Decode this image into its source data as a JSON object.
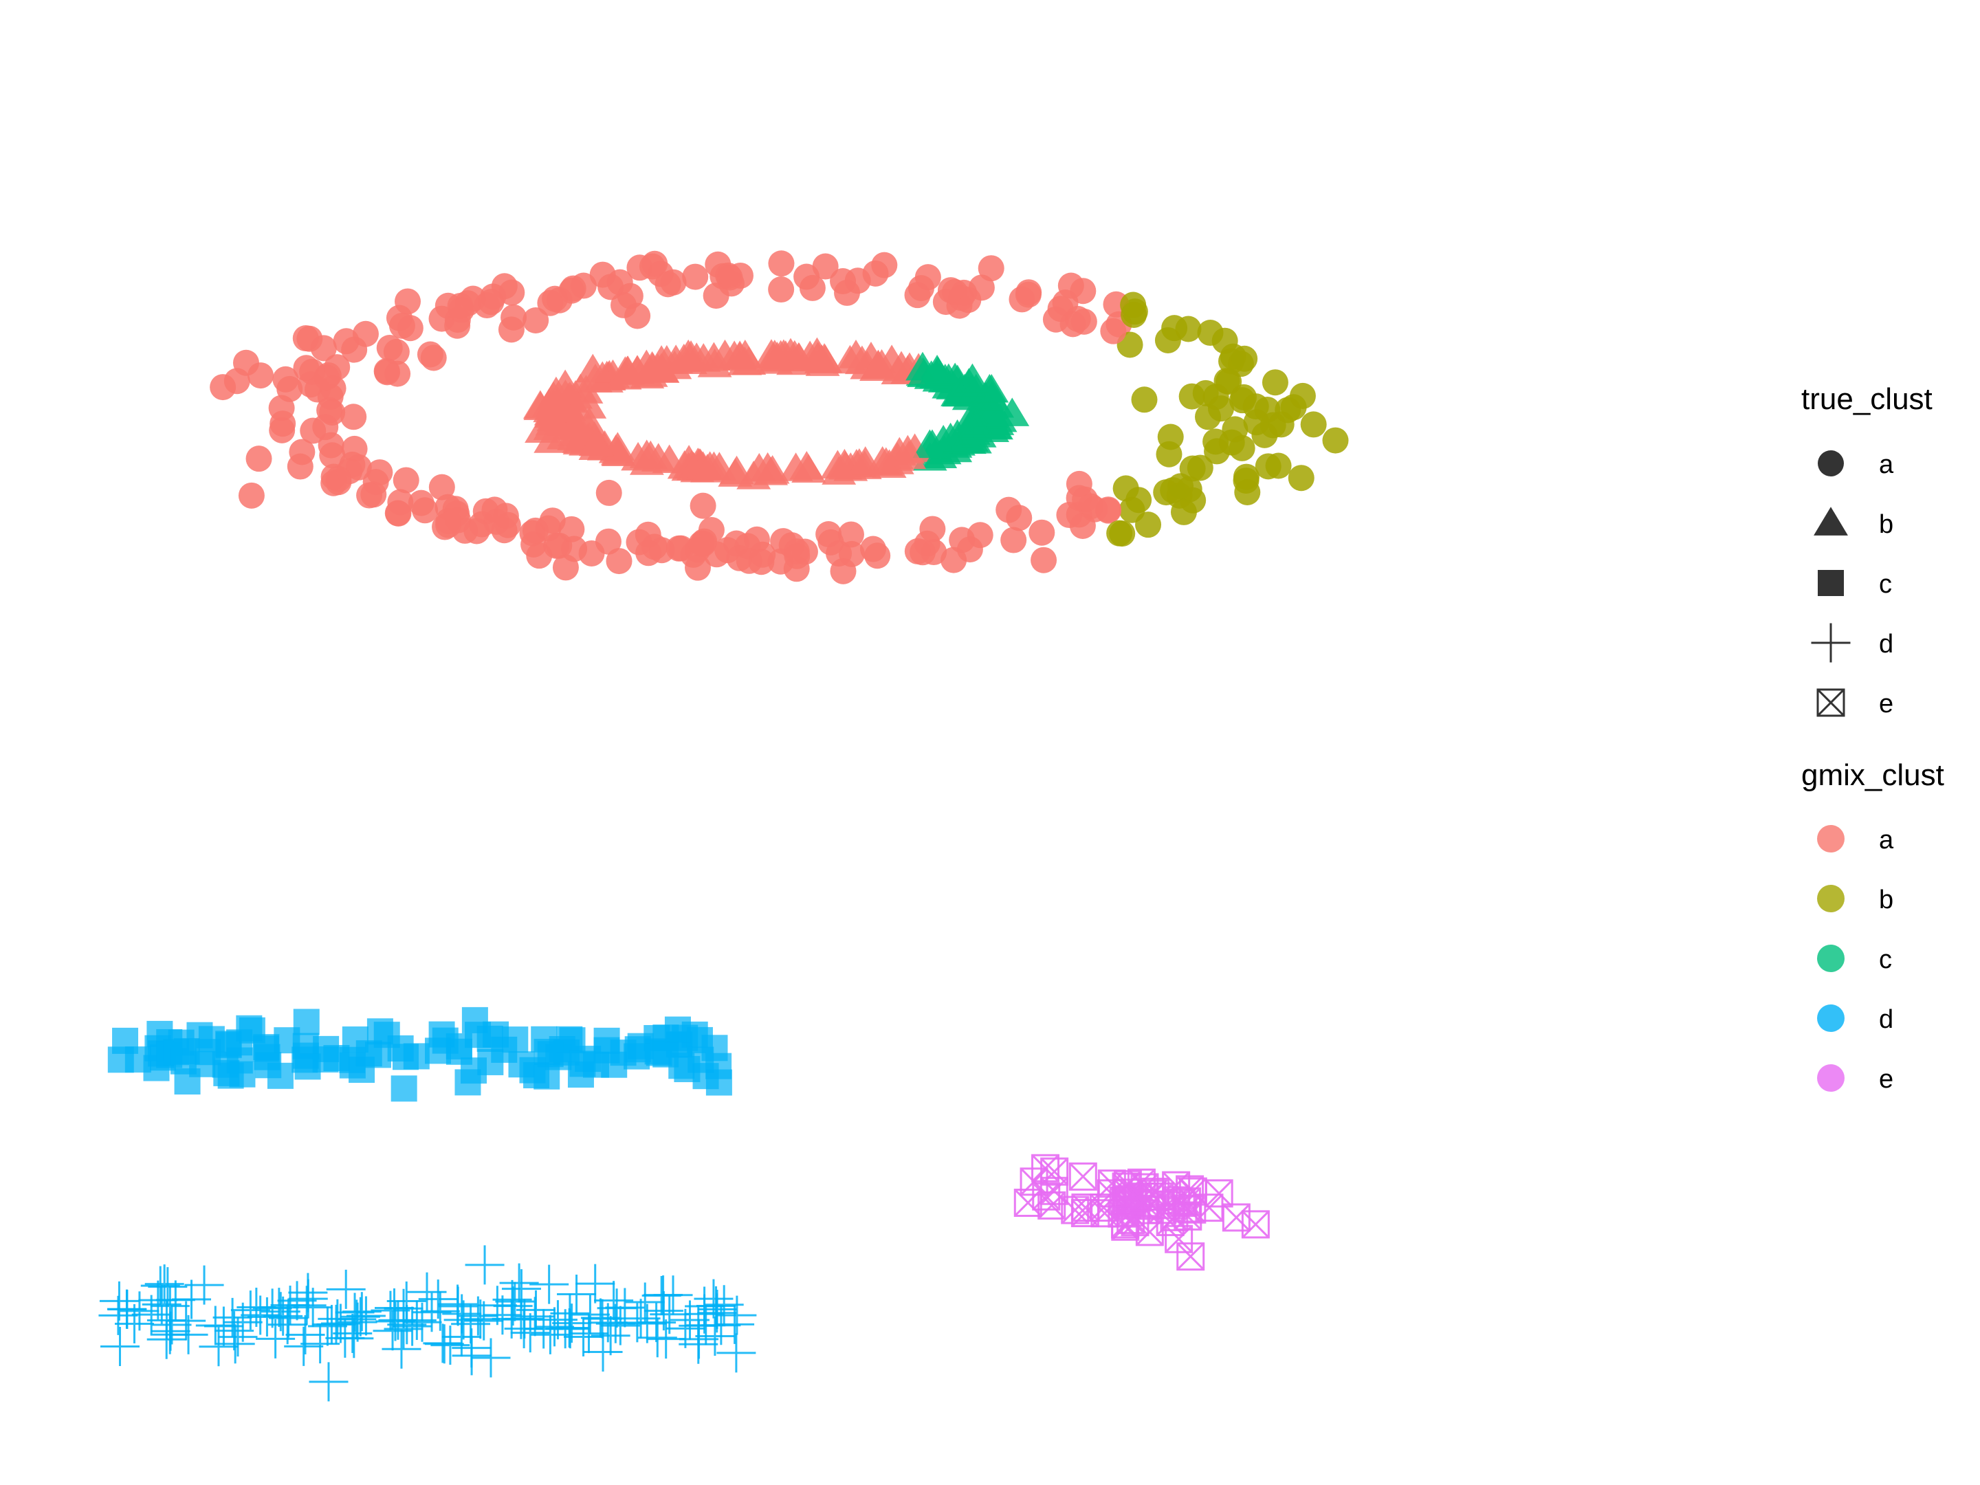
{
  "chart_data": {
    "type": "scatter",
    "title": "",
    "xlabel": "",
    "ylabel": "",
    "grid": false,
    "axes_visible": false,
    "xlim": [
      -0.5,
      13.5
    ],
    "ylim": [
      -10.6,
      10.6
    ],
    "legend_position": "right",
    "legend": {
      "shape_title": "true_clust",
      "shape_entries": [
        {
          "label": "a",
          "shape": "circle"
        },
        {
          "label": "b",
          "shape": "triangle"
        },
        {
          "label": "c",
          "shape": "square"
        },
        {
          "label": "d",
          "shape": "plus"
        },
        {
          "label": "e",
          "shape": "boxed-x"
        }
      ],
      "color_title": "gmix_clust",
      "color_entries": [
        {
          "label": "a",
          "color": "#F8766D"
        },
        {
          "label": "b",
          "color": "#A3A500"
        },
        {
          "label": "c",
          "color": "#00BF7D"
        },
        {
          "label": "d",
          "color": "#00B0F6"
        },
        {
          "label": "e",
          "color": "#E76BF3"
        }
      ]
    },
    "series": [
      {
        "true_clust": "a",
        "shape": "circle",
        "description_groups": [
          {
            "gmix_clust": "a",
            "color": "#F8766D",
            "generator": "outer-ring-left"
          },
          {
            "gmix_clust": "b",
            "color": "#A3A500",
            "generator": "outer-ring-right"
          }
        ],
        "center": [
          5.5,
          5.0
        ],
        "radius_x": 4.0,
        "radius_y": 2.1,
        "count": 300
      },
      {
        "true_clust": "b",
        "shape": "triangle",
        "description_groups": [
          {
            "gmix_clust": "a",
            "color": "#F8766D",
            "generator": "inner-ring-left"
          },
          {
            "gmix_clust": "c",
            "color": "#00BF7D",
            "generator": "inner-ring-right"
          }
        ],
        "center": [
          5.5,
          5.0
        ],
        "radius_x": 1.8,
        "radius_y": 0.85,
        "count": 260
      },
      {
        "true_clust": "c",
        "shape": "square",
        "gmix_clust": "d",
        "color": "#00B0F6",
        "x_range": [
          0.0,
          5.2
        ],
        "y_center": -4.6,
        "count": 110
      },
      {
        "true_clust": "d",
        "shape": "plus",
        "gmix_clust": "d",
        "color": "#00B0F6",
        "x_range": [
          0.0,
          5.2
        ],
        "y_center": -8.6,
        "count": 170
      },
      {
        "true_clust": "e",
        "shape": "boxed-x",
        "gmix_clust": "e",
        "color": "#E76BF3",
        "center": [
          8.5,
          -6.9
        ],
        "count": 60
      }
    ]
  }
}
